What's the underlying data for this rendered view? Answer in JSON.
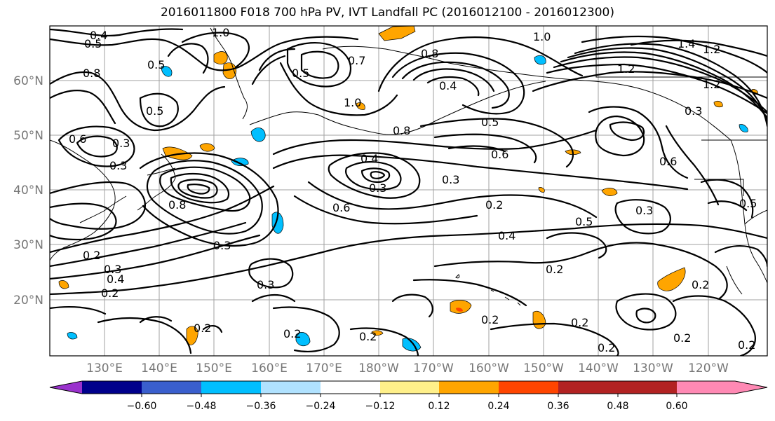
{
  "title": "2016011800 F018 700 hPa PV, IVT Landfall PC (2016012100 - 2016012300)",
  "latitudes": [
    {
      "label": "60°N"
    },
    {
      "label": "50°N"
    },
    {
      "label": "40°N"
    },
    {
      "label": "30°N"
    },
    {
      "label": "20°N"
    }
  ],
  "longitudes": [
    {
      "label": "130°E"
    },
    {
      "label": "140°E"
    },
    {
      "label": "150°E"
    },
    {
      "label": "160°E"
    },
    {
      "label": "170°E"
    },
    {
      "label": "180°W"
    },
    {
      "label": "170°W"
    },
    {
      "label": "160°W"
    },
    {
      "label": "150°W"
    },
    {
      "label": "140°W"
    },
    {
      "label": "130°W"
    },
    {
      "label": "120°W"
    }
  ],
  "colorbar": {
    "colors": [
      "#9a32cd",
      "#00008b",
      "#3a5fcd",
      "#00bfff",
      "#b0e2ff",
      "#ffffff",
      "#fff08a",
      "#ffa500",
      "#ff4500",
      "#b22222",
      "#ff89b4"
    ],
    "ticks": [
      "−0.60",
      "−0.48",
      "−0.36",
      "−0.24",
      "−0.12",
      "0.12",
      "0.24",
      "0.36",
      "0.48",
      "0.60"
    ]
  },
  "contour_labels": [
    "0.4",
    "0.5",
    "1.0",
    "0.5",
    "0.8",
    "0.3",
    "0.6",
    "0.3",
    "0.5",
    "0.8",
    "1.0",
    "0.7",
    "0.8",
    "0.5",
    "0.5",
    "0.4",
    "0.6",
    "1.0",
    "1.2",
    "1.4",
    "1.2",
    "1.2",
    "0.3",
    "0.8",
    "0.4",
    "0.3",
    "0.3",
    "0.6",
    "0.2",
    "0.5",
    "0.3",
    "0.4",
    "0.6",
    "0.5",
    "0.3",
    "0.2",
    "0.3",
    "0.4",
    "0.2",
    "0.3",
    "0.2",
    "0.2",
    "0.2",
    "0.2",
    "0.2",
    "0.2",
    "0.2",
    "0.2",
    "0.2",
    "0.2"
  ]
}
